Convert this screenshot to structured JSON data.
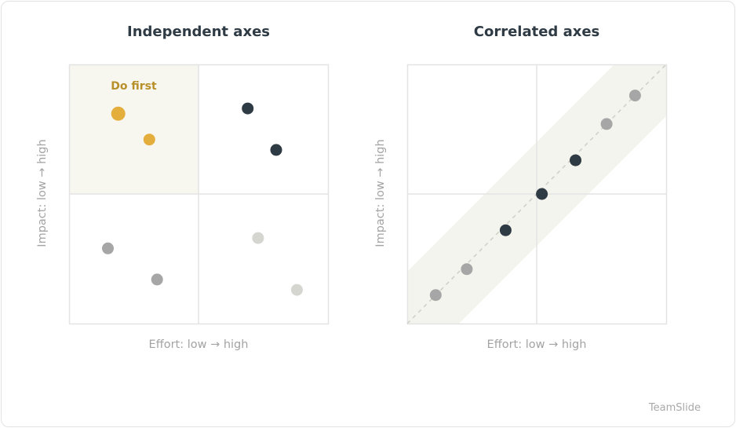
{
  "charts": {
    "independent": {
      "title": "Independent axes",
      "xlabel": "Effort: low → high",
      "ylabel": "Impact: low → high",
      "highlight_label": "Do first"
    },
    "correlated": {
      "title": "Correlated axes",
      "xlabel": "Effort: low → high",
      "ylabel": "Impact: low → high"
    }
  },
  "footer": {
    "brand": "TeamSlide"
  },
  "colors": {
    "gold": "#e4ae3c",
    "dark": "#2e3a44",
    "gray": "#a6a6a6",
    "lightgray": "#d6d6d0",
    "highlight_fill": "#f7f7f0",
    "band_fill": "#f4f4ee",
    "grid": "#e3e3e3",
    "label_gold": "#b8902a"
  },
  "chart_data": [
    {
      "type": "scatter",
      "title": "Independent axes",
      "xlabel": "Effort: low → high",
      "ylabel": "Impact: low → high",
      "xlim": [
        0,
        1
      ],
      "ylim": [
        0,
        1
      ],
      "quadrant_split": 0.5,
      "points": [
        {
          "x": 0.19,
          "y": 0.81,
          "color": "gold",
          "size": "large"
        },
        {
          "x": 0.31,
          "y": 0.71,
          "color": "gold",
          "size": "normal"
        },
        {
          "x": 0.69,
          "y": 0.83,
          "color": "dark",
          "size": "normal"
        },
        {
          "x": 0.8,
          "y": 0.67,
          "color": "dark",
          "size": "normal"
        },
        {
          "x": 0.15,
          "y": 0.29,
          "color": "gray",
          "size": "normal"
        },
        {
          "x": 0.34,
          "y": 0.17,
          "color": "gray",
          "size": "normal"
        },
        {
          "x": 0.73,
          "y": 0.33,
          "color": "lightgray",
          "size": "normal"
        },
        {
          "x": 0.88,
          "y": 0.13,
          "color": "lightgray",
          "size": "normal"
        }
      ]
    },
    {
      "type": "scatter",
      "title": "Correlated axes",
      "xlabel": "Effort: low → high",
      "ylabel": "Impact: low → high",
      "xlim": [
        0,
        1
      ],
      "ylim": [
        0,
        1
      ],
      "quadrant_split": 0.5,
      "trend": "diagonal, dashed",
      "points": [
        {
          "x": 0.11,
          "y": 0.11,
          "color": "gray"
        },
        {
          "x": 0.23,
          "y": 0.21,
          "color": "gray"
        },
        {
          "x": 0.38,
          "y": 0.36,
          "color": "dark"
        },
        {
          "x": 0.52,
          "y": 0.5,
          "color": "dark"
        },
        {
          "x": 0.65,
          "y": 0.63,
          "color": "dark"
        },
        {
          "x": 0.77,
          "y": 0.77,
          "color": "gray"
        },
        {
          "x": 0.88,
          "y": 0.88,
          "color": "gray"
        }
      ]
    }
  ]
}
